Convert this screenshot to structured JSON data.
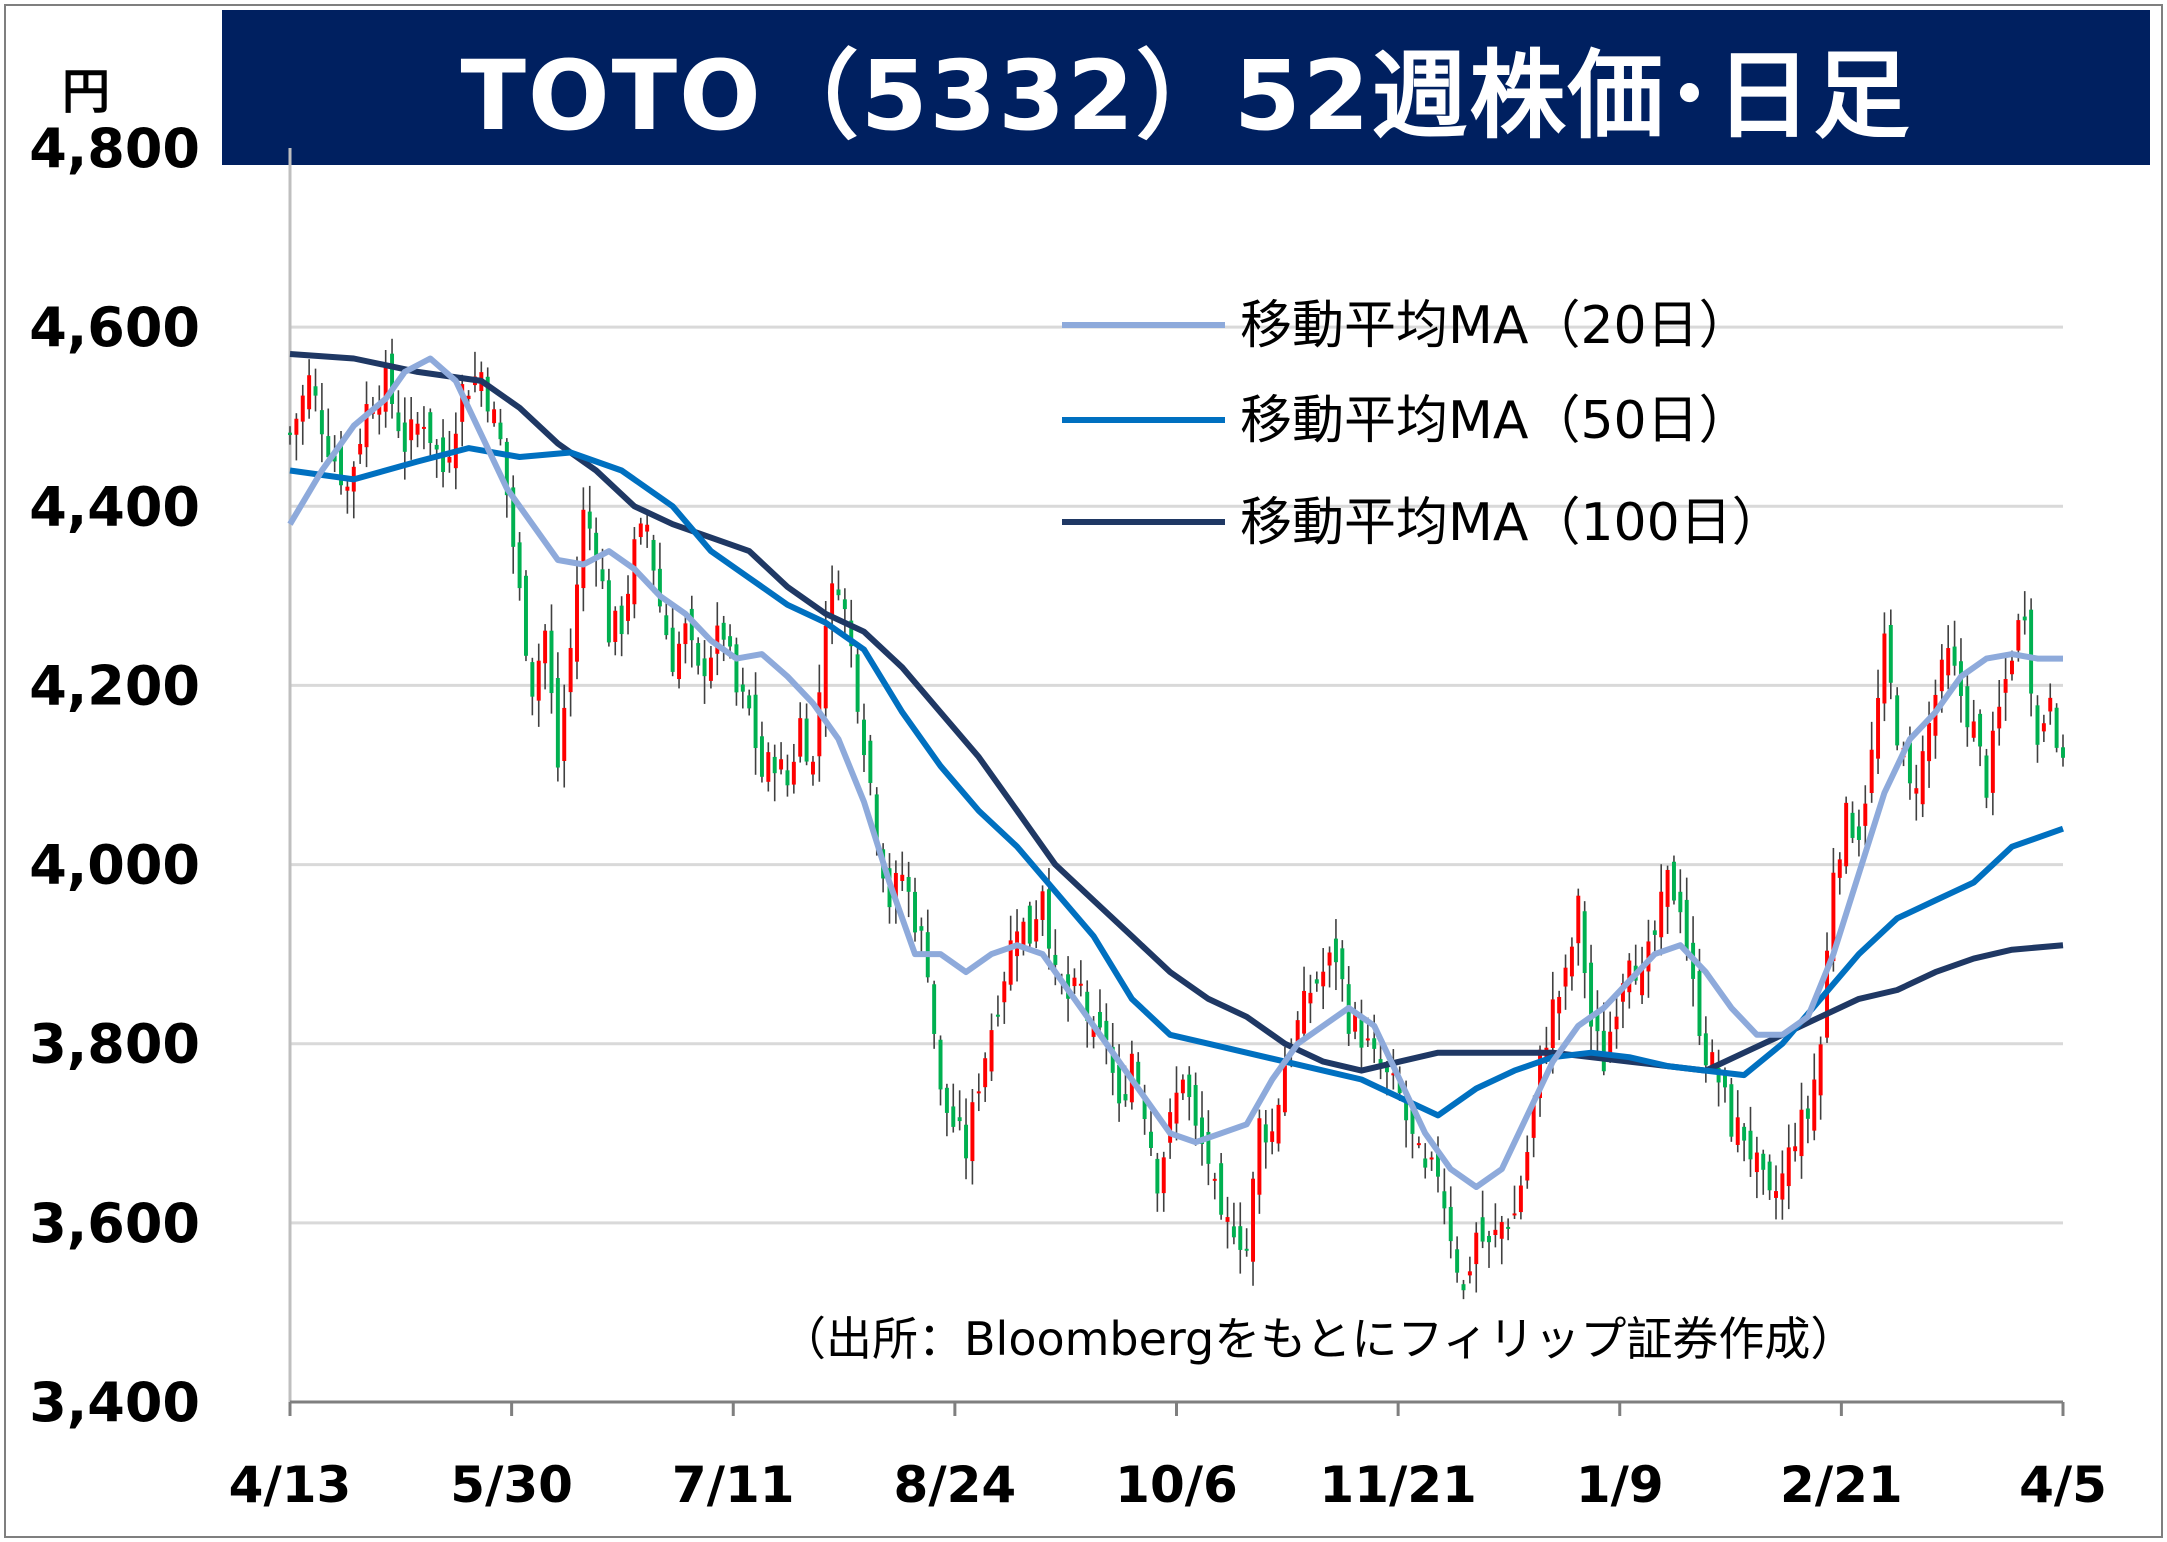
{
  "title": "TOTO（5332）52週株価･日足",
  "unit": "円",
  "source": "（出所：Bloombergをもとにフィリップ証券作成）",
  "colors": {
    "title_bg": "#002060",
    "up": "#ff0000",
    "down": "#00b050",
    "ma20": "#8eaadb",
    "ma50": "#0070c0",
    "ma100": "#1f3864",
    "grid": "#d9d9d9"
  },
  "chart_data": {
    "type": "candlestick",
    "title": "TOTO（5332）52週株価･日足",
    "ylabel": "円",
    "ylim": [
      3400,
      4800
    ],
    "yticks": [
      3400,
      3600,
      3800,
      4000,
      4200,
      4400,
      4600,
      4800
    ],
    "ytick_labels": [
      "3,400",
      "3,600",
      "3,800",
      "4,000",
      "4,200",
      "4,400",
      "4,600",
      "4,800"
    ],
    "x_categories": [
      "4/13",
      "5/30",
      "7/11",
      "8/24",
      "10/6",
      "11/21",
      "1/9",
      "2/21",
      "4/5"
    ],
    "grid": true,
    "legend_position": "top-right",
    "legend": [
      {
        "key": "ma20",
        "label": "移動平均MA（20日）"
      },
      {
        "key": "ma50",
        "label": "移動平均MA（50日）"
      },
      {
        "key": "ma100",
        "label": "移動平均MA（100日）"
      }
    ],
    "close_points": [
      [
        0,
        4480
      ],
      [
        3,
        4540
      ],
      [
        6,
        4470
      ],
      [
        9,
        4420
      ],
      [
        12,
        4510
      ],
      [
        15,
        4540
      ],
      [
        18,
        4470
      ],
      [
        21,
        4500
      ],
      [
        24,
        4440
      ],
      [
        27,
        4530
      ],
      [
        30,
        4550
      ],
      [
        33,
        4470
      ],
      [
        36,
        4300
      ],
      [
        38,
        4200
      ],
      [
        40,
        4260
      ],
      [
        42,
        4110
      ],
      [
        44,
        4240
      ],
      [
        46,
        4390
      ],
      [
        48,
        4360
      ],
      [
        50,
        4260
      ],
      [
        52,
        4270
      ],
      [
        54,
        4350
      ],
      [
        56,
        4380
      ],
      [
        58,
        4290
      ],
      [
        60,
        4230
      ],
      [
        62,
        4260
      ],
      [
        64,
        4210
      ],
      [
        66,
        4240
      ],
      [
        68,
        4260
      ],
      [
        70,
        4190
      ],
      [
        72,
        4170
      ],
      [
        74,
        4100
      ],
      [
        76,
        4120
      ],
      [
        78,
        4090
      ],
      [
        80,
        4160
      ],
      [
        82,
        4110
      ],
      [
        84,
        4280
      ],
      [
        86,
        4320
      ],
      [
        88,
        4240
      ],
      [
        90,
        4140
      ],
      [
        92,
        4040
      ],
      [
        94,
        3960
      ],
      [
        96,
        3990
      ],
      [
        98,
        3940
      ],
      [
        100,
        3890
      ],
      [
        102,
        3740
      ],
      [
        104,
        3710
      ],
      [
        106,
        3680
      ],
      [
        108,
        3760
      ],
      [
        110,
        3820
      ],
      [
        112,
        3880
      ],
      [
        114,
        3940
      ],
      [
        116,
        3920
      ],
      [
        118,
        3980
      ],
      [
        120,
        3870
      ],
      [
        122,
        3850
      ],
      [
        124,
        3860
      ],
      [
        126,
        3800
      ],
      [
        128,
        3810
      ],
      [
        130,
        3720
      ],
      [
        132,
        3790
      ],
      [
        134,
        3730
      ],
      [
        136,
        3650
      ],
      [
        138,
        3710
      ],
      [
        140,
        3770
      ],
      [
        142,
        3700
      ],
      [
        144,
        3670
      ],
      [
        146,
        3590
      ],
      [
        148,
        3600
      ],
      [
        150,
        3570
      ],
      [
        152,
        3710
      ],
      [
        154,
        3700
      ],
      [
        156,
        3780
      ],
      [
        158,
        3820
      ],
      [
        160,
        3860
      ],
      [
        162,
        3880
      ],
      [
        164,
        3900
      ],
      [
        166,
        3830
      ],
      [
        168,
        3810
      ],
      [
        170,
        3780
      ],
      [
        172,
        3760
      ],
      [
        174,
        3740
      ],
      [
        176,
        3690
      ],
      [
        178,
        3650
      ],
      [
        180,
        3660
      ],
      [
        182,
        3590
      ],
      [
        184,
        3520
      ],
      [
        186,
        3590
      ],
      [
        188,
        3570
      ],
      [
        190,
        3600
      ],
      [
        192,
        3610
      ],
      [
        194,
        3680
      ],
      [
        196,
        3780
      ],
      [
        198,
        3840
      ],
      [
        200,
        3870
      ],
      [
        202,
        3950
      ],
      [
        204,
        3820
      ],
      [
        206,
        3780
      ],
      [
        208,
        3850
      ],
      [
        210,
        3910
      ],
      [
        212,
        3870
      ],
      [
        214,
        3920
      ],
      [
        216,
        3980
      ],
      [
        218,
        3960
      ],
      [
        220,
        3860
      ],
      [
        222,
        3790
      ],
      [
        224,
        3760
      ],
      [
        226,
        3710
      ],
      [
        228,
        3700
      ],
      [
        230,
        3660
      ],
      [
        232,
        3620
      ],
      [
        234,
        3650
      ],
      [
        236,
        3700
      ],
      [
        238,
        3720
      ],
      [
        240,
        3800
      ],
      [
        242,
        4000
      ],
      [
        244,
        4050
      ],
      [
        246,
        4040
      ],
      [
        248,
        4120
      ],
      [
        250,
        4240
      ],
      [
        252,
        4150
      ],
      [
        254,
        4080
      ],
      [
        256,
        4120
      ],
      [
        258,
        4190
      ],
      [
        260,
        4230
      ],
      [
        262,
        4190
      ],
      [
        264,
        4150
      ],
      [
        266,
        4090
      ],
      [
        268,
        4170
      ],
      [
        270,
        4240
      ],
      [
        272,
        4290
      ],
      [
        274,
        4130
      ],
      [
        276,
        4200
      ],
      [
        278,
        4100
      ]
    ],
    "ma20": [
      [
        0,
        4380
      ],
      [
        5,
        4440
      ],
      [
        10,
        4490
      ],
      [
        15,
        4520
      ],
      [
        18,
        4550
      ],
      [
        22,
        4565
      ],
      [
        26,
        4540
      ],
      [
        30,
        4480
      ],
      [
        34,
        4420
      ],
      [
        38,
        4380
      ],
      [
        42,
        4340
      ],
      [
        46,
        4335
      ],
      [
        50,
        4350
      ],
      [
        54,
        4330
      ],
      [
        58,
        4300
      ],
      [
        62,
        4280
      ],
      [
        66,
        4250
      ],
      [
        70,
        4230
      ],
      [
        74,
        4235
      ],
      [
        78,
        4210
      ],
      [
        82,
        4180
      ],
      [
        86,
        4140
      ],
      [
        90,
        4070
      ],
      [
        94,
        3980
      ],
      [
        98,
        3900
      ],
      [
        102,
        3900
      ],
      [
        106,
        3880
      ],
      [
        110,
        3900
      ],
      [
        114,
        3910
      ],
      [
        118,
        3900
      ],
      [
        122,
        3860
      ],
      [
        126,
        3820
      ],
      [
        130,
        3780
      ],
      [
        134,
        3740
      ],
      [
        138,
        3700
      ],
      [
        142,
        3690
      ],
      [
        146,
        3700
      ],
      [
        150,
        3710
      ],
      [
        154,
        3760
      ],
      [
        158,
        3800
      ],
      [
        162,
        3820
      ],
      [
        166,
        3840
      ],
      [
        170,
        3820
      ],
      [
        174,
        3760
      ],
      [
        178,
        3700
      ],
      [
        182,
        3660
      ],
      [
        186,
        3640
      ],
      [
        190,
        3660
      ],
      [
        194,
        3720
      ],
      [
        198,
        3780
      ],
      [
        202,
        3820
      ],
      [
        206,
        3840
      ],
      [
        210,
        3870
      ],
      [
        214,
        3900
      ],
      [
        218,
        3910
      ],
      [
        222,
        3880
      ],
      [
        226,
        3840
      ],
      [
        230,
        3810
      ],
      [
        234,
        3810
      ],
      [
        238,
        3830
      ],
      [
        242,
        3900
      ],
      [
        246,
        3990
      ],
      [
        250,
        4080
      ],
      [
        254,
        4140
      ],
      [
        258,
        4170
      ],
      [
        262,
        4210
      ],
      [
        266,
        4230
      ],
      [
        270,
        4235
      ],
      [
        274,
        4230
      ],
      [
        278,
        4230
      ]
    ],
    "ma50": [
      [
        0,
        4440
      ],
      [
        10,
        4430
      ],
      [
        20,
        4450
      ],
      [
        28,
        4465
      ],
      [
        36,
        4455
      ],
      [
        44,
        4460
      ],
      [
        52,
        4440
      ],
      [
        60,
        4400
      ],
      [
        66,
        4350
      ],
      [
        72,
        4320
      ],
      [
        78,
        4290
      ],
      [
        84,
        4270
      ],
      [
        90,
        4240
      ],
      [
        96,
        4170
      ],
      [
        102,
        4110
      ],
      [
        108,
        4060
      ],
      [
        114,
        4020
      ],
      [
        120,
        3970
      ],
      [
        126,
        3920
      ],
      [
        132,
        3850
      ],
      [
        138,
        3810
      ],
      [
        144,
        3800
      ],
      [
        150,
        3790
      ],
      [
        156,
        3780
      ],
      [
        162,
        3770
      ],
      [
        168,
        3760
      ],
      [
        174,
        3740
      ],
      [
        180,
        3720
      ],
      [
        186,
        3750
      ],
      [
        192,
        3770
      ],
      [
        198,
        3785
      ],
      [
        204,
        3790
      ],
      [
        210,
        3785
      ],
      [
        216,
        3775
      ],
      [
        222,
        3770
      ],
      [
        228,
        3765
      ],
      [
        234,
        3800
      ],
      [
        240,
        3850
      ],
      [
        246,
        3900
      ],
      [
        252,
        3940
      ],
      [
        258,
        3960
      ],
      [
        264,
        3980
      ],
      [
        270,
        4020
      ],
      [
        278,
        4040
      ]
    ],
    "ma100": [
      [
        0,
        4570
      ],
      [
        10,
        4565
      ],
      [
        20,
        4550
      ],
      [
        30,
        4540
      ],
      [
        36,
        4510
      ],
      [
        42,
        4470
      ],
      [
        48,
        4440
      ],
      [
        54,
        4400
      ],
      [
        60,
        4380
      ],
      [
        66,
        4365
      ],
      [
        72,
        4350
      ],
      [
        78,
        4310
      ],
      [
        84,
        4280
      ],
      [
        90,
        4260
      ],
      [
        96,
        4220
      ],
      [
        102,
        4170
      ],
      [
        108,
        4120
      ],
      [
        114,
        4060
      ],
      [
        120,
        4000
      ],
      [
        126,
        3960
      ],
      [
        132,
        3920
      ],
      [
        138,
        3880
      ],
      [
        144,
        3850
      ],
      [
        150,
        3830
      ],
      [
        156,
        3800
      ],
      [
        162,
        3780
      ],
      [
        168,
        3770
      ],
      [
        174,
        3780
      ],
      [
        180,
        3790
      ],
      [
        186,
        3790
      ],
      [
        192,
        3790
      ],
      [
        198,
        3790
      ],
      [
        204,
        3785
      ],
      [
        210,
        3780
      ],
      [
        216,
        3775
      ],
      [
        222,
        3770
      ],
      [
        228,
        3790
      ],
      [
        234,
        3810
      ],
      [
        240,
        3830
      ],
      [
        246,
        3850
      ],
      [
        252,
        3860
      ],
      [
        258,
        3880
      ],
      [
        264,
        3895
      ],
      [
        270,
        3905
      ],
      [
        278,
        3910
      ]
    ]
  }
}
